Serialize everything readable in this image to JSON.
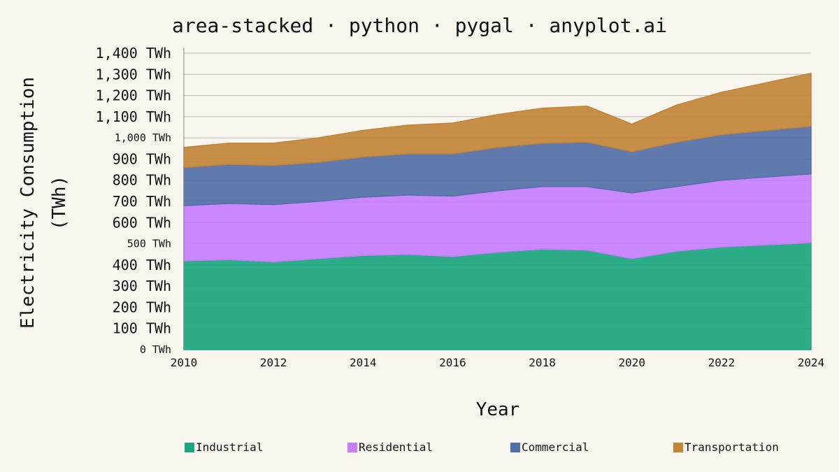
{
  "chart_data": {
    "type": "area",
    "stacked": true,
    "title": "area-stacked · python · pygal · anyplot.ai",
    "xlabel": "Year",
    "ylabel": [
      "Electricity Consumption",
      "(TWh)"
    ],
    "ylim": [
      0,
      1400
    ],
    "grid": true,
    "legend_position": "bottom",
    "x": [
      2010,
      2011,
      2012,
      2013,
      2014,
      2015,
      2016,
      2017,
      2018,
      2019,
      2020,
      2021,
      2022,
      2023,
      2024
    ],
    "x_ticks": [
      "2010",
      "2012",
      "2014",
      "2016",
      "2018",
      "2020",
      "2022",
      "2024"
    ],
    "y_ticks": [
      {
        "value": 0,
        "label": "0 TWh",
        "major": false
      },
      {
        "value": 100,
        "label": "100 TWh",
        "major": true
      },
      {
        "value": 200,
        "label": "200 TWh",
        "major": true
      },
      {
        "value": 300,
        "label": "300 TWh",
        "major": true
      },
      {
        "value": 400,
        "label": "400 TWh",
        "major": true
      },
      {
        "value": 500,
        "label": "500 TWh",
        "major": false
      },
      {
        "value": 600,
        "label": "600 TWh",
        "major": true
      },
      {
        "value": 700,
        "label": "700 TWh",
        "major": true
      },
      {
        "value": 800,
        "label": "800 TWh",
        "major": true
      },
      {
        "value": 900,
        "label": "900 TWh",
        "major": true
      },
      {
        "value": 1000,
        "label": "1,000 TWh",
        "major": false
      },
      {
        "value": 1100,
        "label": "1,100 TWh",
        "major": true
      },
      {
        "value": 1200,
        "label": "1,200 TWh",
        "major": true
      },
      {
        "value": 1300,
        "label": "1,300 TWh",
        "major": true
      },
      {
        "value": 1400,
        "label": "1,400 TWh",
        "major": true
      }
    ],
    "series": [
      {
        "name": "Industrial",
        "color": "#1aa57e",
        "values": [
          420,
          425,
          415,
          430,
          445,
          450,
          440,
          460,
          475,
          470,
          430,
          465,
          485,
          495,
          505
        ]
      },
      {
        "name": "Residential",
        "color": "#c77dff",
        "values": [
          260,
          265,
          270,
          270,
          275,
          280,
          285,
          290,
          295,
          300,
          310,
          305,
          315,
          320,
          325
        ]
      },
      {
        "name": "Commercial",
        "color": "#526fa8",
        "values": [
          180,
          185,
          185,
          185,
          190,
          195,
          200,
          205,
          205,
          210,
          195,
          210,
          215,
          220,
          225
        ]
      },
      {
        "name": "Transportation",
        "color": "#c18437",
        "values": [
          95,
          100,
          105,
          115,
          125,
          135,
          145,
          155,
          165,
          170,
          130,
          175,
          200,
          225,
          250
        ]
      }
    ]
  }
}
